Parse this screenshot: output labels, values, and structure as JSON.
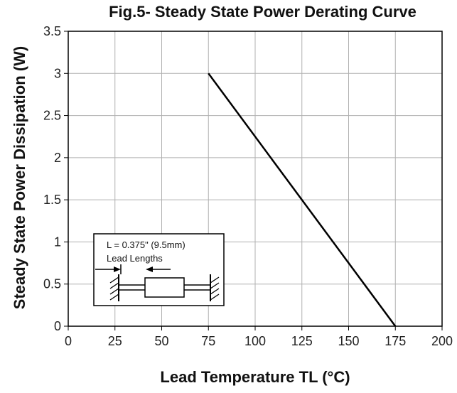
{
  "chart_data": {
    "type": "line",
    "title": "Fig.5- Steady State Power Derating Curve",
    "xlabel": "Lead Temperature TL (°C)",
    "ylabel": "Steady State Power Dissipation (W)",
    "xlim": [
      0,
      200
    ],
    "ylim": [
      0,
      3.5
    ],
    "x_ticks": [
      "0",
      "25",
      "50",
      "75",
      "100",
      "125",
      "150",
      "175",
      "200"
    ],
    "y_ticks": [
      "0",
      "0.5",
      "1",
      "1.5",
      "2",
      "2.5",
      "3",
      "3.5"
    ],
    "grid": true,
    "series": [
      {
        "x": [
          75,
          175
        ],
        "y": [
          3,
          0
        ]
      }
    ],
    "inset": {
      "line1": "L = 0.375\" (9.5mm)",
      "line2": "Lead Lengths"
    },
    "colors": {
      "line": "#000000",
      "grid": "#b0b0b0",
      "axis": "#000000"
    }
  }
}
